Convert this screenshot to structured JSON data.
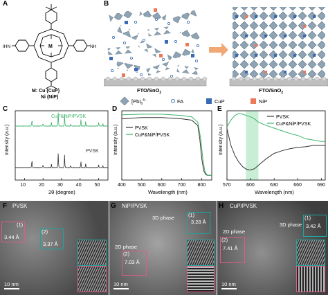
{
  "panels": {
    "A": {
      "label": "A",
      "nh2_left": "IHN",
      "nh2_right": "NH",
      "metal_center": "M",
      "caption_line1": "M: Cu (CuP)",
      "caption_line2": "Ni (NiP)"
    },
    "B": {
      "label": "B",
      "substrate_left": "FTO/SnO",
      "substrate_right": "FTO/SnO",
      "legend_pbi": "[PbI",
      "legend_fa": "FA",
      "legend_cup": "CuP",
      "legend_nip": "NiP"
    },
    "C": {
      "label": "C",
      "xlabel": "2θ (degree)",
      "ylabel": "Intensity (a.u.)",
      "series_top": "CuP&NiP/PVSK",
      "series_bottom": "PVSK",
      "xticks": [
        "10",
        "20",
        "30",
        "40",
        "50"
      ]
    },
    "D": {
      "label": "D",
      "xlabel": "Wavelength (nm)",
      "ylabel": "Intensity (a.u.)",
      "legend": [
        "PVSK",
        "CuP&NiP/PVSK"
      ],
      "xticks": [
        "400",
        "500",
        "600",
        "700",
        "800"
      ]
    },
    "E": {
      "label": "E",
      "xlabel": "Wavelength (nm)",
      "ylabel": "Intensity (a.u.)",
      "legend": [
        "PVSK",
        "CuP&NiP/PVSK"
      ],
      "xticks": [
        "570",
        "600",
        "630",
        "660",
        "690"
      ]
    },
    "F": {
      "label": "F",
      "title": "PVSK",
      "box1": "(1)",
      "d1": "3.44 Å",
      "box2": "(2)",
      "d2": "3.37 Å",
      "scale": "10 nm"
    },
    "G": {
      "label": "G",
      "title": "NiP/PVSK",
      "phase3d": "3D phase",
      "box1": "(1)",
      "d1": "3.28 Å",
      "phase2d": "2D phase",
      "box2": "(2)",
      "d2": "7.03 Å",
      "scale": "10 nm"
    },
    "H": {
      "label": "H",
      "title": "CuP/PVSK",
      "phase3d": "3D phase",
      "box1": "(1)",
      "d1": "3.42 Å",
      "phase2d": "2D phase",
      "box2": "(2)",
      "d2": "7.41 Å",
      "scale": "10 nm"
    }
  },
  "chart_data": [
    {
      "type": "line",
      "panel": "C",
      "xlabel": "2θ (degree)",
      "ylabel": "Intensity (a.u.)",
      "xlim": [
        5,
        55
      ],
      "peaks_2theta": [
        14.0,
        19.9,
        24.5,
        28.2,
        31.6,
        34.9,
        40.4,
        43.0,
        50.0,
        52.3
      ],
      "series": [
        {
          "name": "CuP&NiP/PVSK",
          "color": "#3db26b",
          "peak_heights": [
            0.45,
            0.2,
            0.25,
            0.9,
            0.8,
            0.15,
            0.45,
            0.3,
            0.25,
            0.15
          ]
        },
        {
          "name": "PVSK",
          "color": "#333333",
          "peak_heights": [
            0.55,
            0.2,
            0.22,
            0.95,
            0.85,
            0.15,
            0.4,
            0.25,
            0.2,
            0.12
          ]
        }
      ]
    },
    {
      "type": "line",
      "panel": "D",
      "xlabel": "Wavelength (nm)",
      "ylabel": "Intensity (a.u.)",
      "xlim": [
        400,
        850
      ],
      "series": [
        {
          "name": "PVSK",
          "color": "#333333",
          "x": [
            400,
            500,
            600,
            700,
            750,
            780,
            790,
            800,
            810,
            820,
            830,
            850
          ],
          "y": [
            0.9,
            0.92,
            0.92,
            0.9,
            0.88,
            0.8,
            0.6,
            0.3,
            0.12,
            0.06,
            0.05,
            0.05
          ]
        },
        {
          "name": "CuP&NiP/PVSK",
          "color": "#3db26b",
          "x": [
            400,
            500,
            600,
            700,
            750,
            780,
            795,
            805,
            815,
            825,
            835,
            850
          ],
          "y": [
            0.96,
            0.97,
            0.97,
            0.95,
            0.93,
            0.85,
            0.6,
            0.3,
            0.12,
            0.06,
            0.05,
            0.05
          ]
        }
      ]
    },
    {
      "type": "line",
      "panel": "E",
      "xlabel": "Wavelength (nm)",
      "ylabel": "Intensity (a.u.)",
      "xlim": [
        570,
        695
      ],
      "highlight_x": [
        594,
        610
      ],
      "series": [
        {
          "name": "PVSK",
          "color": "#333333",
          "x": [
            570,
            575,
            580,
            585,
            590,
            595,
            600,
            605,
            610,
            620,
            630,
            640,
            650,
            660,
            670,
            680,
            690,
            695
          ],
          "y": [
            0.75,
            0.5,
            0.35,
            0.25,
            0.18,
            0.14,
            0.13,
            0.15,
            0.2,
            0.3,
            0.38,
            0.42,
            0.45,
            0.47,
            0.48,
            0.5,
            0.5,
            0.5
          ]
        },
        {
          "name": "CuP&NiP/PVSK",
          "color": "#3db26b",
          "x": [
            570,
            575,
            580,
            585,
            590,
            595,
            600,
            605,
            610,
            620,
            630,
            640,
            650,
            660,
            670,
            680,
            690,
            695
          ],
          "y": [
            0.78,
            0.88,
            0.95,
            0.98,
            0.97,
            0.95,
            0.93,
            0.9,
            0.85,
            0.8,
            0.76,
            0.72,
            0.68,
            0.65,
            0.6,
            0.58,
            0.56,
            0.56
          ]
        }
      ]
    }
  ]
}
